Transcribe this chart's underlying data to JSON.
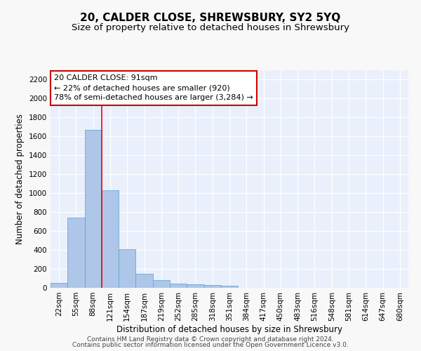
{
  "title": "20, CALDER CLOSE, SHREWSBURY, SY2 5YQ",
  "subtitle": "Size of property relative to detached houses in Shrewsbury",
  "xlabel": "Distribution of detached houses by size in Shrewsbury",
  "ylabel": "Number of detached properties",
  "bar_labels": [
    "22sqm",
    "55sqm",
    "88sqm",
    "121sqm",
    "154sqm",
    "187sqm",
    "219sqm",
    "252sqm",
    "285sqm",
    "318sqm",
    "351sqm",
    "384sqm",
    "417sqm",
    "450sqm",
    "483sqm",
    "516sqm",
    "548sqm",
    "581sqm",
    "614sqm",
    "647sqm",
    "680sqm"
  ],
  "bar_values": [
    50,
    740,
    1670,
    1030,
    405,
    150,
    80,
    48,
    40,
    28,
    20,
    0,
    0,
    0,
    0,
    0,
    0,
    0,
    0,
    0,
    0
  ],
  "bar_color": "#aec6e8",
  "bar_edge_color": "#5a9fd4",
  "ylim": [
    0,
    2300
  ],
  "yticks": [
    0,
    200,
    400,
    600,
    800,
    1000,
    1200,
    1400,
    1600,
    1800,
    2000,
    2200
  ],
  "redline_x": 2.5,
  "annotation_text": "20 CALDER CLOSE: 91sqm\n← 22% of detached houses are smaller (920)\n78% of semi-detached houses are larger (3,284) →",
  "annotation_box_color": "#ffffff",
  "annotation_box_edge": "#cc0000",
  "footer_line1": "Contains HM Land Registry data © Crown copyright and database right 2024.",
  "footer_line2": "Contains public sector information licensed under the Open Government Licence v3.0.",
  "bg_color": "#eaf0fb",
  "grid_color": "#ffffff",
  "title_fontsize": 11,
  "subtitle_fontsize": 9.5,
  "axis_label_fontsize": 8.5,
  "tick_fontsize": 7.5,
  "annotation_fontsize": 8,
  "footer_fontsize": 6.5
}
